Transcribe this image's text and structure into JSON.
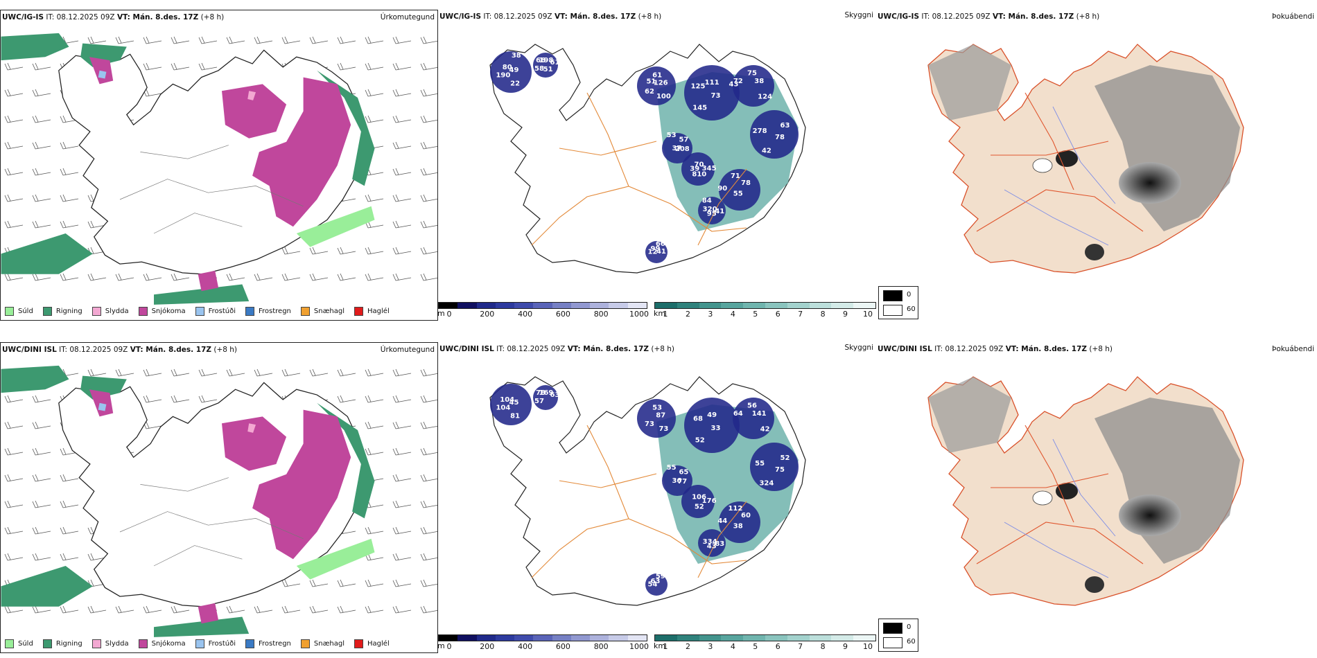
{
  "rows": [
    {
      "model": "UWC/IG-IS",
      "it_label": "IT: 08.12.2025 09Z",
      "vt_label": "VT: Mán. 8.des. 17Z",
      "lead": "(+8 h)",
      "ceiling_labels": [
        "49",
        "58",
        "61",
        "73",
        "72",
        "63",
        "55",
        "53",
        "41",
        "12",
        "70",
        "22",
        "66",
        "126",
        "145",
        "75",
        "78",
        "90",
        "57",
        "95",
        "99",
        "345",
        "190",
        "198",
        "100",
        "125",
        "38",
        "42",
        "71",
        "208",
        "320",
        "66",
        "810",
        "80",
        "61",
        "62",
        "111",
        "124",
        "278",
        "78",
        "37",
        "84",
        "41",
        "39",
        "38",
        "51",
        "51",
        "43"
      ]
    },
    {
      "model": "UWC/DINI ISL",
      "it_label": "IT: 08.12.2025 09Z",
      "vt_label": "VT: Mán. 8.des. 17Z",
      "lead": "(+8 h)",
      "ceiling_labels": [
        "45",
        "57",
        "53",
        "33",
        "64",
        "52",
        "38",
        "55",
        "83",
        "54",
        "106",
        "81",
        "78",
        "87",
        "52",
        "56",
        "75",
        "44",
        "65",
        "43",
        "63",
        "176",
        "104",
        "169",
        "73",
        "68",
        "141",
        "324",
        "112",
        "77",
        "334",
        "59",
        "52",
        "104",
        "63",
        "73",
        "49",
        "42",
        "55",
        "60",
        "36"
      ]
    }
  ],
  "panels": {
    "precip": {
      "title": "Úrkomutegund",
      "legend": [
        {
          "label": "Súld",
          "color": "#99ee99"
        },
        {
          "label": "Rigning",
          "color": "#3d9970"
        },
        {
          "label": "Slydda",
          "color": "#f3a8d2"
        },
        {
          "label": "Snjókoma",
          "color": "#c0479c"
        },
        {
          "label": "Frostúði",
          "color": "#9ac4ef"
        },
        {
          "label": "Frostregn",
          "color": "#3a7ac4"
        },
        {
          "label": "Snæhagl",
          "color": "#f0a030"
        },
        {
          "label": "Haglél",
          "color": "#e11b1b"
        }
      ]
    },
    "ceiling": {
      "title": "Skyggni",
      "elev_unit": "m",
      "elev_ticks": [
        "0",
        "200",
        "400",
        "600",
        "800",
        "1000"
      ],
      "elev_colors": [
        "#000000",
        "#101060",
        "#202a8a",
        "#2d3a9e",
        "#3f4bab",
        "#5a64b8",
        "#7680c4",
        "#9198d0",
        "#adb2dc",
        "#c7cbe8",
        "#e3e5f4"
      ],
      "vis_unit": "km",
      "vis_ticks": [
        "1",
        "2",
        "3",
        "4",
        "5",
        "6",
        "7",
        "8",
        "9",
        "10"
      ],
      "vis_colors": [
        "#1d6e6a",
        "#2f827c",
        "#43948d",
        "#58a59e",
        "#70b5ae",
        "#8ac4be",
        "#a3d2cd",
        "#bcdfdb",
        "#d4ebe8",
        "#ecf6f5"
      ],
      "cloud_legend": [
        {
          "label": "0",
          "color": "#000000"
        },
        {
          "label": "60",
          "color": "#ffffff"
        }
      ]
    },
    "fog": {
      "title": "Þokuábendi"
    }
  }
}
